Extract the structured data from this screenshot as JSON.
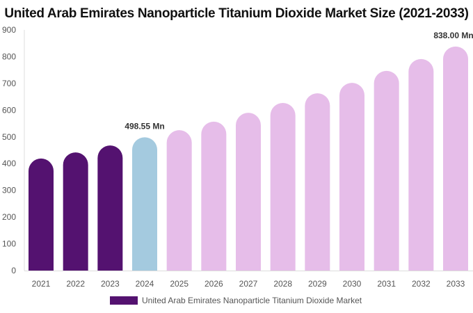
{
  "chart_data": {
    "type": "bar",
    "title": "United Arab Emirates Nanoparticle Titanium Dioxide Market Size (2021-2033)",
    "categories": [
      "2021",
      "2022",
      "2023",
      "2024",
      "2025",
      "2026",
      "2027",
      "2028",
      "2029",
      "2030",
      "2031",
      "2032",
      "2033"
    ],
    "series": [
      {
        "name": "United Arab Emirates Nanoparticle Titanium Dioxide Market",
        "values": [
          419,
          442,
          468,
          498.55,
          525,
          557,
          590,
          627,
          663,
          702,
          747,
          791,
          838
        ]
      }
    ],
    "data_labels": [
      {
        "category": "2024",
        "text": "498.55 Mn"
      },
      {
        "category": "2033",
        "text": "838.00 Mn"
      }
    ],
    "ylim": [
      0,
      900
    ],
    "yticks": [
      0,
      100,
      200,
      300,
      400,
      500,
      600,
      700,
      800,
      900
    ],
    "xlabel": "",
    "ylabel": "",
    "grid": false,
    "legend_placement": "bottom",
    "colors": {
      "historical": "#541270",
      "base_year": "#a4cadf",
      "forecast": "#e6bde9"
    },
    "color_groups": [
      "historical",
      "historical",
      "historical",
      "base_year",
      "forecast",
      "forecast",
      "forecast",
      "forecast",
      "forecast",
      "forecast",
      "forecast",
      "forecast",
      "forecast"
    ]
  }
}
